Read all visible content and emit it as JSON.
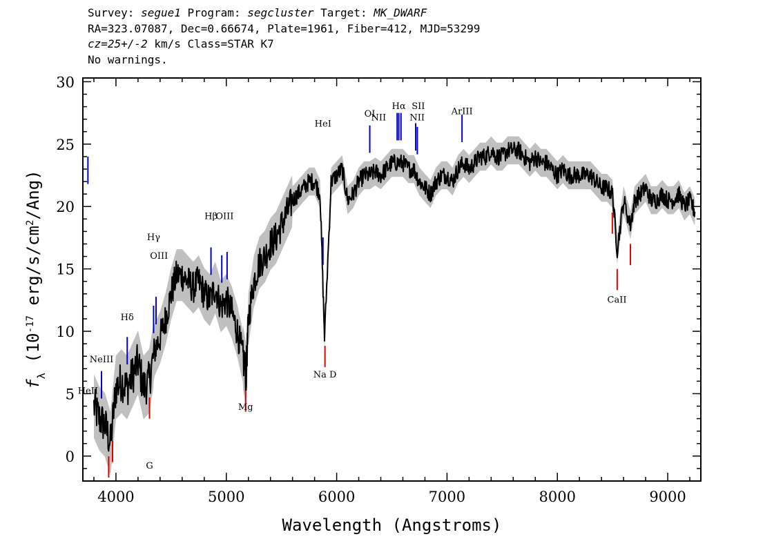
{
  "header": {
    "survey_label": "Survey: ",
    "survey": "segue1",
    "program_label": " Program: ",
    "program": "segcluster",
    "target_label": " Target: ",
    "target": "MK_DWARF",
    "line2": "RA=323.07087, Dec=0.66674, Plate=1961, Fiber=412, MJD=53299",
    "cz": "cz=25+/-2",
    "cz_units": " km/s Class=STAR K7",
    "line4": "No warnings."
  },
  "chart_data": {
    "type": "line",
    "xlabel": "Wavelength (Angstroms)",
    "ylabel": "f_λ (10^-17 erg/s/cm^2/Ang)",
    "xlim": [
      3700,
      9300
    ],
    "ylim": [
      -2,
      30.3
    ],
    "xticks": [
      4000,
      5000,
      6000,
      7000,
      8000,
      9000
    ],
    "yticks": [
      0,
      5,
      10,
      15,
      20,
      25,
      30
    ],
    "colors": {
      "flux": "#000000",
      "error_band": "#c0c0c0",
      "emission": "#0000cc",
      "absorption": "#dd0000"
    },
    "series": [
      {
        "x": [
          3800,
          3850,
          3900,
          3950,
          4000,
          4050,
          4100,
          4150,
          4200,
          4250,
          4300,
          4350,
          4400,
          4450,
          4500,
          4550,
          4600,
          4650,
          4700,
          4750,
          4800,
          4850,
          4900,
          4950,
          5000,
          5050,
          5100,
          5150,
          5180,
          5200,
          5250,
          5300,
          5350,
          5400,
          5450,
          5500,
          5550,
          5600,
          5650,
          5700,
          5750,
          5800,
          5850,
          5890,
          5950,
          6000,
          6050,
          6100,
          6150,
          6200,
          6250,
          6300,
          6350,
          6400,
          6450,
          6500,
          6550,
          6600,
          6650,
          6700,
          6750,
          6800,
          6850,
          6900,
          6950,
          7000,
          7050,
          7100,
          7150,
          7200,
          7250,
          7300,
          7350,
          7400,
          7450,
          7500,
          7550,
          7600,
          7650,
          7700,
          7750,
          7800,
          7850,
          7900,
          7950,
          8000,
          8050,
          8100,
          8150,
          8200,
          8250,
          8300,
          8350,
          8400,
          8450,
          8500,
          8542,
          8600,
          8662,
          8700,
          8750,
          8800,
          8850,
          8900,
          8950,
          9000,
          9050,
          9100,
          9150,
          9200,
          9250
        ],
        "y": [
          4.0,
          3.0,
          2.5,
          1.0,
          5.5,
          6.0,
          5.5,
          6.5,
          7.5,
          5.5,
          6.0,
          8.5,
          9.5,
          11.0,
          13.0,
          14.5,
          14.5,
          14.0,
          13.5,
          14.0,
          13.0,
          12.5,
          13.5,
          12.0,
          12.5,
          11.5,
          10.0,
          8.0,
          6.5,
          11.0,
          14.0,
          15.5,
          16.0,
          17.0,
          17.5,
          18.5,
          19.5,
          20.5,
          21.0,
          21.5,
          22.0,
          22.0,
          21.0,
          9.5,
          22.0,
          22.5,
          23.0,
          20.5,
          21.0,
          22.0,
          22.5,
          22.5,
          22.8,
          22.5,
          23.0,
          23.5,
          23.5,
          23.5,
          23.0,
          23.0,
          22.0,
          21.5,
          21.0,
          22.0,
          22.5,
          22.5,
          22.0,
          23.0,
          23.5,
          23.0,
          23.5,
          24.0,
          24.0,
          24.5,
          24.0,
          24.0,
          24.5,
          24.5,
          24.5,
          24.0,
          23.5,
          24.0,
          23.5,
          23.5,
          23.0,
          22.5,
          23.0,
          22.5,
          22.5,
          22.5,
          22.5,
          22.5,
          22.0,
          21.5,
          21.5,
          21.0,
          16.5,
          20.5,
          18.5,
          20.5,
          21.0,
          21.5,
          20.5,
          20.5,
          21.0,
          20.5,
          20.5,
          21.0,
          20.0,
          20.5,
          19.5
        ]
      }
    ],
    "emission_lines": [
      {
        "name": "HeII",
        "wave": 3746
      },
      {
        "name": "NeIII",
        "wave": 3869
      },
      {
        "name": "Hδ",
        "wave": 4102
      },
      {
        "name": "Hγ",
        "wave": 4341
      },
      {
        "name": "OIII",
        "wave": 4363
      },
      {
        "name": "Hβ",
        "wave": 4861
      },
      {
        "name": "OIII",
        "wave": 4959
      },
      {
        "name": "OIII",
        "wave": 5007
      },
      {
        "name": "HeI",
        "wave": 5876
      },
      {
        "name": "OI",
        "wave": 6300
      },
      {
        "name": "NII",
        "wave": 6548
      },
      {
        "name": "Hα",
        "wave": 6563
      },
      {
        "name": "NII",
        "wave": 6583
      },
      {
        "name": "SII",
        "wave": 6716
      },
      {
        "name": "SII",
        "wave": 6731
      },
      {
        "name": "ArIII",
        "wave": 7136
      }
    ],
    "absorption_lines": [
      {
        "name": "G",
        "wave": 4304
      },
      {
        "name": "Mg",
        "wave": 5175
      },
      {
        "name": "Na D",
        "wave": 5894
      },
      {
        "name": "CaII",
        "wave": 8498
      },
      {
        "name": "CaII",
        "wave": 8542
      },
      {
        "name": "CaII",
        "wave": 8662
      },
      {
        "name": "",
        "wave": 3934
      },
      {
        "name": "",
        "wave": 3969
      }
    ],
    "emission_label_text": [
      "HeII",
      "NeIII",
      "Hδ",
      "Hγ",
      "OIII",
      "Hβ",
      "OIII",
      "HeI",
      "OI",
      "NII",
      "Hα",
      "SII",
      "NII",
      "ArIII"
    ],
    "absorption_label_text": [
      "G",
      "Mg",
      "Na D",
      "CaII"
    ]
  }
}
